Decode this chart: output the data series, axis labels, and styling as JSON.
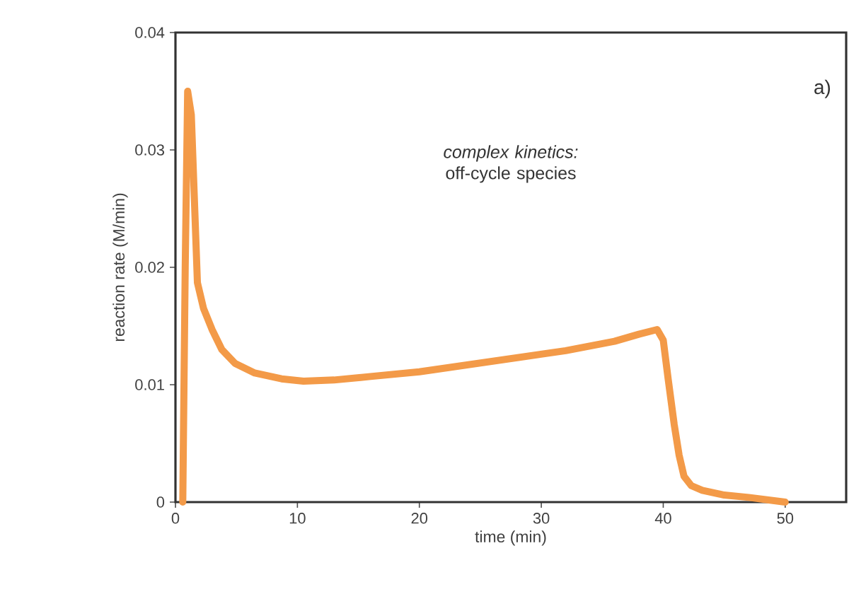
{
  "chart_data": {
    "type": "line",
    "xlabel": "time (min)",
    "ylabel": "reaction rate (M/min)",
    "annotations": [
      "a)",
      "*complex kinetics:* off-cycle species"
    ],
    "xlim": [
      0,
      55
    ],
    "xticks": [
      0,
      10,
      20,
      30,
      40,
      50
    ],
    "ylim": [
      0,
      0.04
    ],
    "yticks": [
      0,
      0.01,
      0.02,
      0.03,
      0.04
    ],
    "marker": "none",
    "line_style": "solid",
    "series": [
      {
        "color": "#f39a48",
        "x": [
          0.6,
          0.8,
          1.0,
          1.3,
          1.8,
          2.3,
          3.0,
          3.8,
          4.9,
          6.5,
          8.7,
          10.5,
          13,
          16,
          20,
          24,
          28,
          32,
          36,
          38,
          39.5,
          40.0,
          40.4,
          40.9,
          41.3,
          41.7,
          42.3,
          43.2,
          45,
          47,
          50
        ],
        "values": [
          0,
          0.02,
          0.035,
          0.033,
          0.0187,
          0.0165,
          0.0147,
          0.013,
          0.0118,
          0.011,
          0.0105,
          0.0103,
          0.0104,
          0.0107,
          0.0111,
          0.0117,
          0.0123,
          0.0129,
          0.0137,
          0.0143,
          0.0147,
          0.0138,
          0.0105,
          0.0066,
          0.004,
          0.0022,
          0.0014,
          0.001,
          0.0006,
          0.0004,
          0
        ]
      }
    ]
  }
}
